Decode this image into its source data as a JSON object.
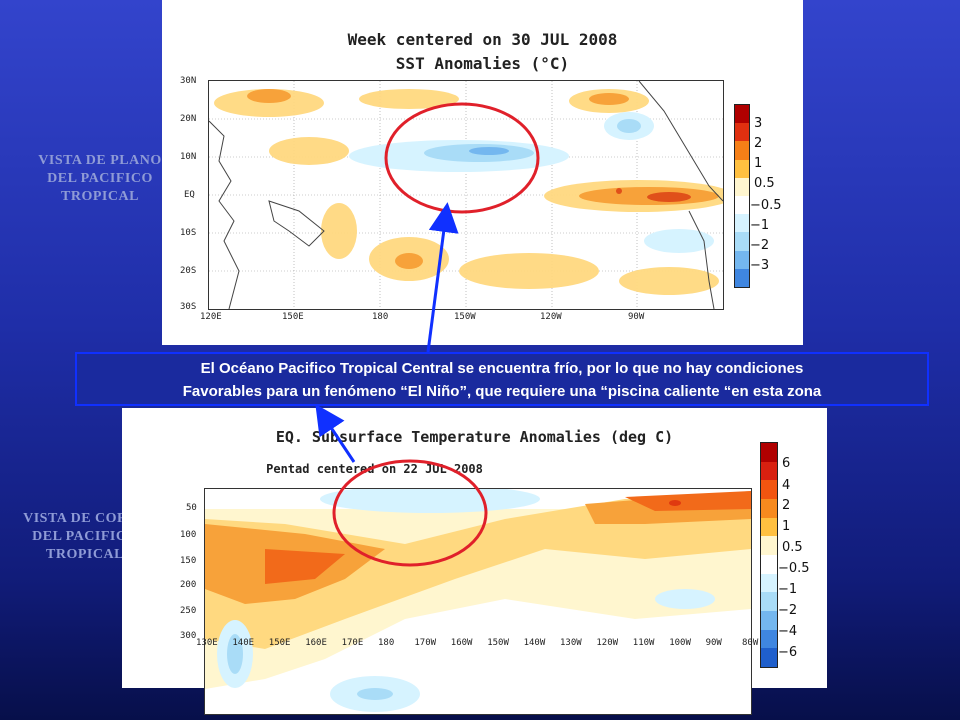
{
  "side_labels": {
    "top": [
      "VISTA DE PLANO",
      "DEL PACIFICO",
      "TROPICAL"
    ],
    "bottom": [
      "VISTA DE CORTE",
      "DEL PACIFICO",
      "TROPICAL"
    ]
  },
  "top_chart": {
    "title_line1": "Week centered on 30 JUL 2008",
    "title_line2": "SST Anomalies (°C)",
    "y_ticks": [
      "30N",
      "20N",
      "10N",
      "EQ",
      "10S",
      "20S",
      "30S"
    ],
    "x_ticks": [
      "120E",
      "150E",
      "180",
      "150W",
      "120W",
      "90W"
    ],
    "colorbar_labels": [
      "3",
      "2",
      "1",
      "0.5",
      "−0.5",
      "−1",
      "−2",
      "−3"
    ],
    "colorbar_colors": [
      "#b00000",
      "#e03010",
      "#f57f17",
      "#ffc040",
      "#fff6cf",
      "#ffffff",
      "#d6f3ff",
      "#a9dcf7",
      "#74b7ef",
      "#3f86e0"
    ]
  },
  "bottom_chart": {
    "title": "EQ. Subsurface Temperature Anomalies (deg C)",
    "subtitle": "Pentad centered on 22 JUL 2008",
    "y_ticks": [
      "50",
      "100",
      "150",
      "200",
      "250",
      "300"
    ],
    "x_ticks": [
      "130E",
      "140E",
      "150E",
      "160E",
      "170E",
      "180",
      "170W",
      "160W",
      "150W",
      "140W",
      "130W",
      "120W",
      "110W",
      "100W",
      "90W",
      "80W"
    ],
    "colorbar_labels": [
      "6",
      "4",
      "2",
      "1",
      "0.5",
      "−0.5",
      "−1",
      "−2",
      "−4",
      "−6"
    ],
    "colorbar_colors": [
      "#b00000",
      "#d82010",
      "#f25510",
      "#f78a1e",
      "#ffc040",
      "#fff6cf",
      "#ffffff",
      "#d6f3ff",
      "#a9dcf7",
      "#74b7ef",
      "#3f86e0",
      "#1f5fcc"
    ]
  },
  "callout": {
    "line1": "El Océano Pacifico Tropical Central se encuentra frío, por lo que no hay condiciones",
    "line2": "Favorables para un fenómeno “El Niño”, que requiere una “piscina caliente “en esta zona"
  },
  "colors": {
    "circle": "#e0202a",
    "arrow": "#1030ff"
  }
}
